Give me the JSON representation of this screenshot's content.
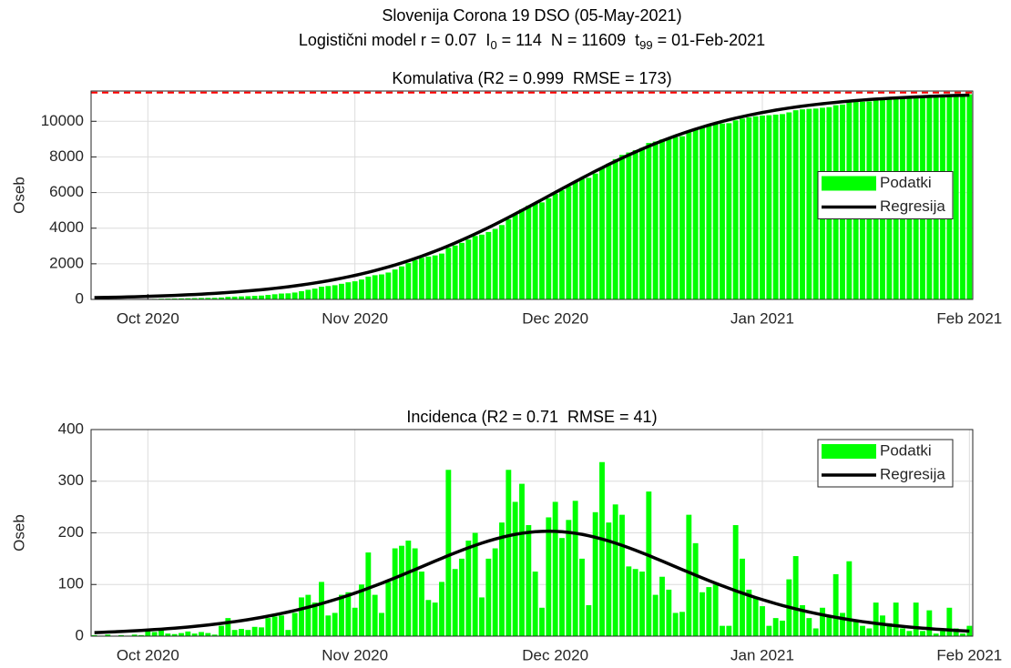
{
  "title": "Slovenija Corona 19 DSO (05-May-2021)",
  "subtitle_parts": [
    "Logistični model r = 0.07  I",
    "0",
    " = 114  N = 11609  t",
    "99",
    " = 01-Feb-2021"
  ],
  "chart_data": [
    {
      "type": "bar",
      "title": "Komulativa (R2 = 0.999  RMSE = 173)",
      "ylabel": "Oseb",
      "categories": [
        null,
        null,
        null,
        null,
        null,
        null,
        null,
        null,
        "Oct 2020",
        null,
        null,
        null,
        null,
        null,
        null,
        null,
        null,
        null,
        null,
        null,
        null,
        null,
        null,
        null,
        null,
        null,
        null,
        null,
        null,
        null,
        null,
        null,
        null,
        null,
        null,
        null,
        null,
        null,
        null,
        "Nov 2020",
        null,
        null,
        null,
        null,
        null,
        null,
        null,
        null,
        null,
        null,
        null,
        null,
        null,
        null,
        null,
        null,
        null,
        null,
        null,
        null,
        null,
        null,
        null,
        null,
        null,
        null,
        null,
        null,
        null,
        "Dec 2020",
        null,
        null,
        null,
        null,
        null,
        null,
        null,
        null,
        null,
        null,
        null,
        null,
        null,
        null,
        null,
        null,
        null,
        null,
        null,
        null,
        null,
        null,
        null,
        null,
        null,
        null,
        null,
        null,
        null,
        null,
        "Jan 2021",
        null,
        null,
        null,
        null,
        null,
        null,
        null,
        null,
        null,
        null,
        null,
        null,
        null,
        null,
        null,
        null,
        null,
        null,
        null,
        null,
        null,
        null,
        null,
        null,
        null,
        null,
        null,
        null,
        null,
        null,
        "Feb 2021"
      ],
      "series": [
        {
          "name": "Podatki",
          "type": "bar",
          "color": "#00ff00",
          "values": [
            2,
            3,
            6,
            6,
            8,
            9,
            12,
            14,
            24,
            32,
            43,
            48,
            52,
            58,
            67,
            72,
            80,
            86,
            89,
            109,
            144,
            156,
            170,
            182,
            200,
            217,
            252,
            290,
            330,
            342,
            387,
            462,
            542,
            607,
            712,
            752,
            797,
            877,
            962,
            1017,
            1117,
            1279,
            1359,
            1404,
            1509,
            1679,
            1854,
            2039,
            2209,
            2334,
            2404,
            2469,
            2574,
            2896,
            3026,
            3176,
            3361,
            3561,
            3636,
            3786,
            3956,
            4176,
            4498,
            4758,
            5053,
            5268,
            5393,
            5448,
            5678,
            5938,
            6128,
            6353,
            6615,
            6765,
            6825,
            7065,
            7402,
            7622,
            7877,
            8112,
            8247,
            8377,
            8502,
            8782,
            8862,
            8977,
            9067,
            9112,
            9159,
            9394,
            9574,
            9659,
            9754,
            9854,
            9874,
            9894,
            10050,
            10150,
            10220,
            10280,
            10320,
            10340,
            10375,
            10405,
            10500,
            10620,
            10670,
            10700,
            10715,
            10760,
            10795,
            10900,
            10940,
            11060,
            11085,
            11100,
            11115,
            11170,
            11200,
            11220,
            11280,
            11295,
            11305,
            11360,
            11370,
            11410,
            11415,
            11425,
            11470,
            11485,
            11490,
            11510
          ]
        },
        {
          "name": "Regresija",
          "type": "line",
          "color": "#000000",
          "values": [
            99,
            106,
            113,
            121,
            130,
            139,
            149,
            160,
            171,
            184,
            197,
            211,
            226,
            242,
            259,
            277,
            297,
            318,
            340,
            364,
            390,
            417,
            446,
            477,
            510,
            545,
            583,
            623,
            666,
            711,
            759,
            810,
            865,
            922,
            983,
            1048,
            1117,
            1190,
            1267,
            1348,
            1433,
            1524,
            1619,
            1719,
            1824,
            1934,
            2049,
            2170,
            2297,
            2428,
            2565,
            2708,
            2856,
            3009,
            3168,
            3332,
            3500,
            3674,
            3852,
            4034,
            4220,
            4410,
            4603,
            4799,
            4997,
            5197,
            5399,
            5601,
            5805,
            6008,
            6210,
            6412,
            6612,
            6810,
            7006,
            7199,
            7389,
            7575,
            7757,
            7935,
            8109,
            8277,
            8441,
            8600,
            8753,
            8901,
            9044,
            9180,
            9312,
            9439,
            9560,
            9675,
            9786,
            9891,
            9990,
            10085,
            10176,
            10261,
            10342,
            10419,
            10492,
            10561,
            10626,
            10688,
            10745,
            10799,
            10850,
            10898,
            10944,
            10986,
            11026,
            11064,
            11099,
            11132,
            11163,
            11192,
            11219,
            11245,
            11268,
            11291,
            11312,
            11332,
            11350,
            11367,
            11383,
            11398,
            11412,
            11425,
            11438,
            11449,
            11460,
            11470
          ]
        }
      ],
      "ylim": [
        0,
        11700
      ],
      "yticks": [
        0,
        2000,
        4000,
        6000,
        8000,
        10000
      ],
      "asymptote": 11609,
      "asymptote_color": "#ff0000",
      "grid": true,
      "legend": "east"
    },
    {
      "type": "bar",
      "title": "Incidenca (R2 = 0.71  RMSE = 41)",
      "ylabel": "Oseb",
      "categories": [
        null,
        null,
        null,
        null,
        null,
        null,
        null,
        null,
        "Oct 2020",
        null,
        null,
        null,
        null,
        null,
        null,
        null,
        null,
        null,
        null,
        null,
        null,
        null,
        null,
        null,
        null,
        null,
        null,
        null,
        null,
        null,
        null,
        null,
        null,
        null,
        null,
        null,
        null,
        null,
        null,
        "Nov 2020",
        null,
        null,
        null,
        null,
        null,
        null,
        null,
        null,
        null,
        null,
        null,
        null,
        null,
        null,
        null,
        null,
        null,
        null,
        null,
        null,
        null,
        null,
        null,
        null,
        null,
        null,
        null,
        null,
        null,
        "Dec 2020",
        null,
        null,
        null,
        null,
        null,
        null,
        null,
        null,
        null,
        null,
        null,
        null,
        null,
        null,
        null,
        null,
        null,
        null,
        null,
        null,
        null,
        null,
        null,
        null,
        null,
        null,
        null,
        null,
        null,
        null,
        "Jan 2021",
        null,
        null,
        null,
        null,
        null,
        null,
        null,
        null,
        null,
        null,
        null,
        null,
        null,
        null,
        null,
        null,
        null,
        null,
        null,
        null,
        null,
        null,
        null,
        null,
        null,
        null,
        null,
        null,
        null,
        null,
        "Feb 2021"
      ],
      "series": [
        {
          "name": "Podatki",
          "type": "bar",
          "color": "#00ff00",
          "values": [
            2,
            1,
            3,
            0,
            2,
            1,
            3,
            2,
            10,
            8,
            11,
            5,
            4,
            6,
            9,
            5,
            8,
            6,
            3,
            20,
            35,
            12,
            14,
            12,
            18,
            17,
            35,
            38,
            40,
            12,
            45,
            75,
            80,
            65,
            105,
            40,
            45,
            80,
            85,
            55,
            100,
            162,
            80,
            45,
            105,
            170,
            175,
            185,
            170,
            125,
            70,
            65,
            105,
            322,
            130,
            150,
            185,
            200,
            75,
            150,
            170,
            220,
            322,
            260,
            295,
            215,
            125,
            55,
            230,
            260,
            190,
            225,
            262,
            150,
            60,
            240,
            337,
            220,
            255,
            235,
            135,
            130,
            125,
            280,
            80,
            115,
            90,
            45,
            47,
            235,
            180,
            85,
            95,
            100,
            20,
            20,
            215,
            150,
            90,
            75,
            58,
            20,
            35,
            30,
            110,
            155,
            60,
            35,
            15,
            55,
            40,
            120,
            45,
            145,
            30,
            20,
            15,
            65,
            40,
            25,
            65,
            15,
            10,
            65,
            10,
            50,
            5,
            10,
            55,
            15,
            5,
            20
          ]
        },
        {
          "name": "Regresija",
          "type": "line",
          "color": "#000000",
          "values": [
            6.9,
            7.3,
            7.9,
            8.4,
            9.0,
            9.6,
            10.3,
            11.1,
            11.8,
            12.7,
            13.5,
            14.5,
            15.5,
            16.6,
            17.7,
            19.0,
            20.3,
            21.6,
            23.1,
            24.7,
            26.4,
            28.1,
            30.0,
            32.0,
            34.1,
            36.4,
            38.8,
            41.3,
            43.9,
            46.7,
            49.6,
            52.7,
            56.0,
            59.4,
            63.0,
            66.8,
            70.7,
            74.7,
            79.0,
            83.4,
            87.9,
            92.7,
            97.5,
            102.5,
            107.6,
            112.8,
            118.1,
            123.5,
            128.9,
            134.4,
            139.9,
            145.3,
            150.7,
            156.1,
            161.2,
            166.3,
            171.2,
            175.8,
            180.2,
            184.3,
            188.0,
            191.4,
            194.4,
            197.1,
            199.2,
            200.9,
            202.2,
            202.9,
            203.2,
            202.9,
            202.2,
            200.9,
            199.2,
            197.1,
            194.4,
            191.4,
            188.0,
            184.3,
            180.2,
            175.8,
            171.2,
            166.3,
            161.2,
            156.1,
            150.7,
            145.3,
            139.9,
            134.4,
            128.9,
            123.5,
            118.1,
            112.8,
            107.6,
            102.5,
            97.5,
            92.7,
            87.9,
            83.4,
            79.0,
            74.7,
            70.7,
            66.8,
            63.0,
            59.4,
            56.0,
            52.7,
            49.6,
            46.7,
            43.9,
            41.3,
            38.8,
            36.4,
            34.1,
            32.0,
            30.0,
            28.1,
            26.4,
            24.7,
            23.1,
            21.6,
            20.3,
            19.0,
            17.7,
            16.6,
            15.5,
            14.5,
            13.5,
            12.7,
            11.8,
            11.1,
            10.3,
            9.6
          ]
        }
      ],
      "ylim": [
        0,
        400
      ],
      "yticks": [
        0,
        100,
        200,
        300,
        400
      ],
      "grid": true,
      "legend": "northeast"
    }
  ]
}
